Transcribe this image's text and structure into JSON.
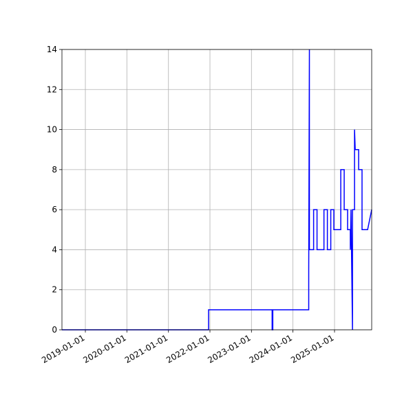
{
  "chart_data": {
    "type": "line",
    "x": [
      "2018-06-09",
      "2021-12-20",
      "2021-12-20",
      "2023-07-02",
      "2023-07-02",
      "2023-07-08",
      "2023-07-08",
      "2024-05-19",
      "2024-05-19",
      "2024-05-25",
      "2024-05-25",
      "2024-07-01",
      "2024-07-01",
      "2024-07-31",
      "2024-07-31",
      "2024-09-30",
      "2024-09-30",
      "2024-10-30",
      "2024-10-30",
      "2024-11-29",
      "2024-11-29",
      "2024-12-26",
      "2024-12-26",
      "2025-02-25",
      "2025-02-25",
      "2025-03-27",
      "2025-03-27",
      "2025-04-26",
      "2025-04-26",
      "2025-05-20",
      "2025-05-20",
      "2025-05-26",
      "2025-06-08",
      "2025-06-08",
      "2025-06-26",
      "2025-06-26",
      "2025-07-02",
      "2025-08-01",
      "2025-08-01",
      "2025-08-31",
      "2025-08-31",
      "2025-10-19",
      "2025-11-24"
    ],
    "series": [
      {
        "color": "#0000ff",
        "values": [
          0,
          0,
          1,
          1,
          0,
          0,
          1,
          1,
          3,
          14,
          4,
          4,
          6,
          6,
          4,
          4,
          6,
          6,
          4,
          4,
          6,
          6,
          5,
          5,
          8,
          8,
          6,
          6,
          5,
          5,
          4,
          6,
          0,
          6,
          6,
          10,
          9,
          9,
          8,
          8,
          5,
          5,
          6
        ]
      }
    ],
    "xlim": [
      "2018-06-09",
      "2025-11-24"
    ],
    "xticks": [
      "2019-01-01",
      "2020-01-01",
      "2021-01-01",
      "2022-01-01",
      "2023-01-01",
      "2024-01-01",
      "2025-01-01"
    ],
    "ylim": [
      0,
      14
    ],
    "yticks": [
      0,
      2,
      4,
      6,
      8,
      10,
      12,
      14
    ],
    "grid": true
  }
}
